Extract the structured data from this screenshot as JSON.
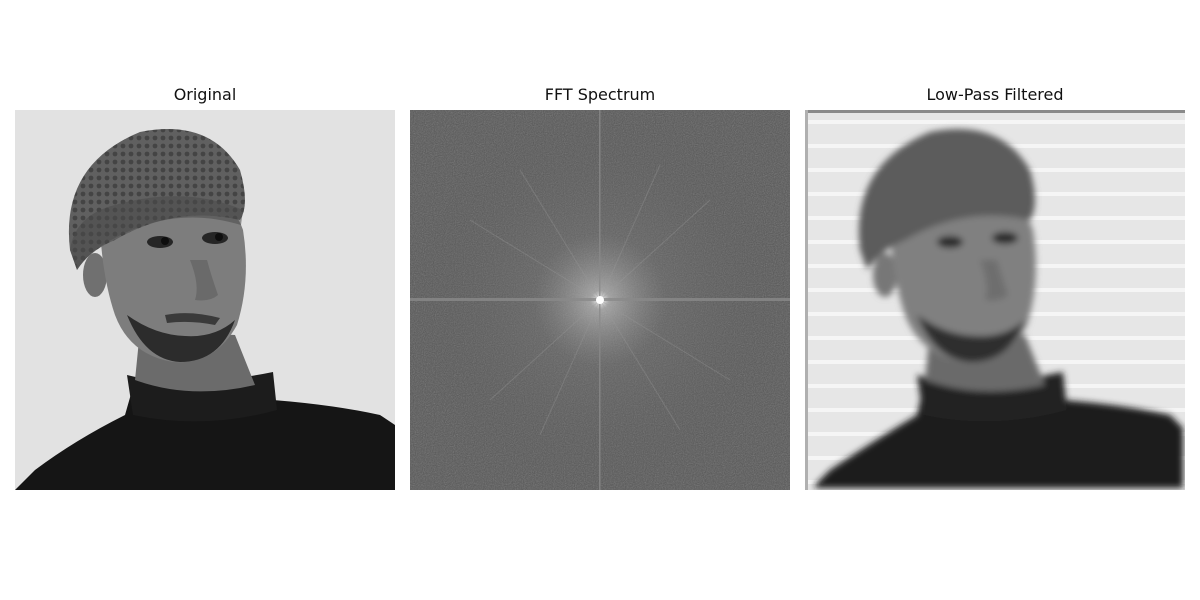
{
  "figure": {
    "panels": [
      {
        "title": "Original",
        "content": "grayscale-portrait-photo"
      },
      {
        "title": "FFT Spectrum",
        "content": "fft-magnitude-spectrum"
      },
      {
        "title": "Low-Pass Filtered",
        "content": "blurred-portrait-photo"
      }
    ]
  },
  "colors": {
    "page_background": "#ffffff",
    "photo_background": "#e2e2e2",
    "spectrum_background": "#5a5a5a",
    "garment": "#151515",
    "skin": "#7d7d7d",
    "beanie": "#5c5c5c"
  }
}
